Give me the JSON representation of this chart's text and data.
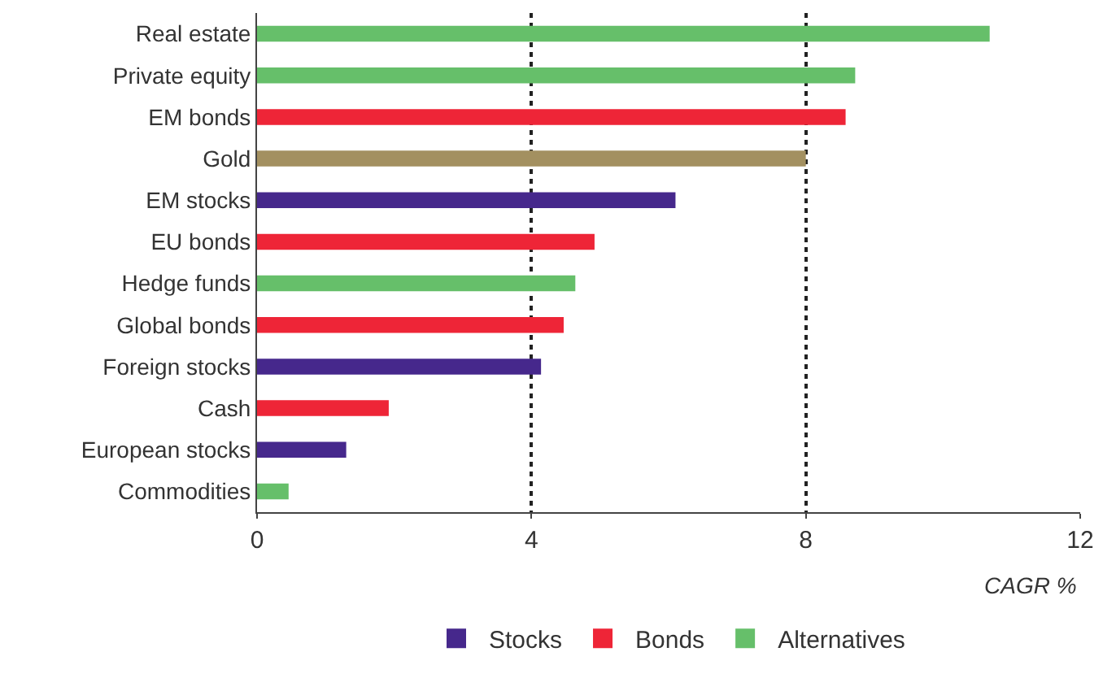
{
  "chart_data": {
    "type": "bar",
    "orientation": "horizontal",
    "xlabel": "CAGR %",
    "categories": [
      "Real estate",
      "Private equity",
      "EM bonds",
      "Gold",
      "EM stocks",
      "EU bonds",
      "Hedge funds",
      "Global bonds",
      "Foreign stocks",
      "Cash",
      "European stocks",
      "Commodities"
    ],
    "series": [
      {
        "name": "Stocks",
        "color": "#46288c",
        "values": [
          null,
          null,
          null,
          null,
          6.1,
          null,
          null,
          null,
          4.14,
          null,
          1.3,
          null
        ]
      },
      {
        "name": "Bonds",
        "color": "#ee2537",
        "values": [
          null,
          null,
          8.58,
          null,
          null,
          4.92,
          null,
          4.47,
          null,
          1.92,
          null,
          null
        ]
      },
      {
        "name": "Alternatives",
        "color": "#66bf6a",
        "values": [
          10.68,
          8.72,
          null,
          null,
          null,
          null,
          4.64,
          null,
          null,
          null,
          null,
          0.46
        ]
      },
      {
        "color": "#a39060",
        "values": [
          null,
          null,
          null,
          8.0,
          null,
          null,
          null,
          null,
          null,
          null,
          null,
          null
        ]
      }
    ],
    "xlim": [
      0,
      12
    ],
    "xticks": [
      0,
      4,
      8,
      12
    ],
    "grid": "x",
    "legend": "bottom"
  }
}
